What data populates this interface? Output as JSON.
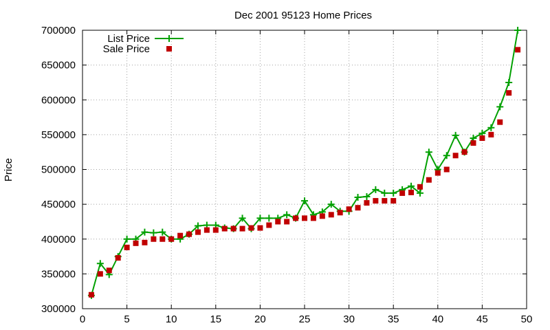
{
  "chart_data": {
    "type": "line",
    "title": "Dec 2001 95123 Home Prices",
    "xlabel": "",
    "ylabel": "Price",
    "xlim": [
      0,
      50
    ],
    "ylim": [
      300000,
      700000
    ],
    "xticks": [
      0,
      5,
      10,
      15,
      20,
      25,
      30,
      35,
      40,
      45,
      50
    ],
    "yticks": [
      300000,
      350000,
      400000,
      450000,
      500000,
      550000,
      600000,
      650000,
      700000
    ],
    "grid": true,
    "legend_position": "top-left",
    "x": [
      1,
      2,
      3,
      4,
      5,
      6,
      7,
      8,
      9,
      10,
      11,
      12,
      13,
      14,
      15,
      16,
      17,
      18,
      19,
      20,
      21,
      22,
      23,
      24,
      25,
      26,
      27,
      28,
      29,
      30,
      31,
      32,
      33,
      34,
      35,
      36,
      37,
      38,
      39,
      40,
      41,
      42,
      43,
      44,
      45,
      46,
      47,
      48,
      49
    ],
    "series": [
      {
        "name": "List Price",
        "style": "line-plus",
        "color": "#00a000",
        "values": [
          319000,
          365000,
          349000,
          375000,
          400000,
          400000,
          410000,
          409000,
          410000,
          400000,
          400000,
          407000,
          419000,
          420000,
          420000,
          416000,
          415000,
          430000,
          415000,
          430000,
          430000,
          430000,
          435000,
          430000,
          455000,
          435000,
          439000,
          450000,
          440000,
          440000,
          460000,
          461000,
          471000,
          466000,
          466000,
          471000,
          476000,
          466000,
          525000,
          500000,
          520000,
          549000,
          525000,
          545000,
          552000,
          560000,
          590000,
          625000,
          700000
        ]
      },
      {
        "name": "Sale Price",
        "style": "square",
        "color": "#c00000",
        "values": [
          320000,
          350000,
          355000,
          373000,
          388000,
          394000,
          395000,
          400000,
          400000,
          400000,
          405000,
          407000,
          410000,
          413000,
          413000,
          415000,
          415000,
          415000,
          416000,
          416000,
          420000,
          425000,
          425000,
          430000,
          430000,
          430000,
          433000,
          435000,
          438000,
          443000,
          445000,
          452000,
          455000,
          455000,
          455000,
          466000,
          467000,
          475000,
          485000,
          495000,
          500000,
          520000,
          525000,
          538000,
          545000,
          550000,
          568000,
          610000,
          672000
        ]
      }
    ]
  }
}
